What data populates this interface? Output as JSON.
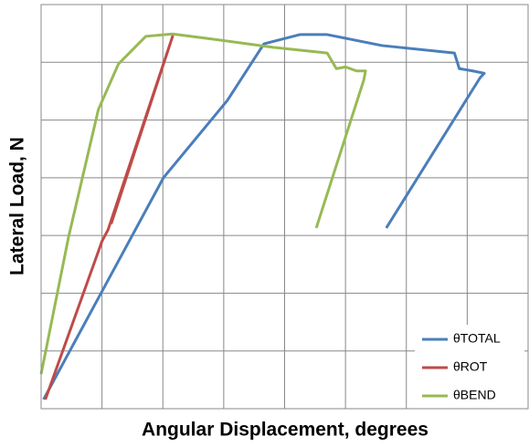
{
  "chart_data": {
    "type": "line",
    "x_label": "Angular Displacement, degrees",
    "y_label": "Lateral Load, N",
    "xlim": [
      0,
      8
    ],
    "ylim": [
      0,
      7
    ],
    "xticks": [
      0,
      1,
      2,
      3,
      4,
      5,
      6,
      7,
      8
    ],
    "yticks": [
      0,
      1,
      2,
      3,
      4,
      5,
      6,
      7
    ],
    "grid": true,
    "legend": "lower right",
    "series": [
      {
        "name": "θTOTAL",
        "color": "#4a7ebb",
        "x": [
          0.04,
          2.01,
          3.06,
          3.66,
          4.25,
          4.7,
          5.6,
          6.79,
          6.87,
          7.09,
          7.28,
          7.21,
          5.67
        ],
        "values": [
          0.16,
          4.0,
          5.34,
          6.32,
          6.48,
          6.48,
          6.29,
          6.16,
          5.89,
          5.85,
          5.81,
          5.73,
          3.13
        ]
      },
      {
        "name": "θROT",
        "color": "#be4b48",
        "x": [
          0.07,
          1.0,
          1.1,
          2.16,
          1.15
        ],
        "values": [
          0.16,
          2.9,
          3.1,
          6.45,
          3.2
        ]
      },
      {
        "name": "θBEND",
        "color": "#98b954",
        "x": [
          0,
          0.45,
          0.94,
          1.27,
          1.72,
          2.16,
          2.76,
          3.81,
          4.7,
          4.85,
          5.0,
          5.18,
          5.33,
          5.3,
          4.52
        ],
        "values": [
          0.6,
          2.97,
          5.18,
          5.97,
          6.45,
          6.49,
          6.41,
          6.26,
          6.16,
          5.89,
          5.92,
          5.85,
          5.85,
          5.69,
          3.13
        ]
      }
    ]
  }
}
